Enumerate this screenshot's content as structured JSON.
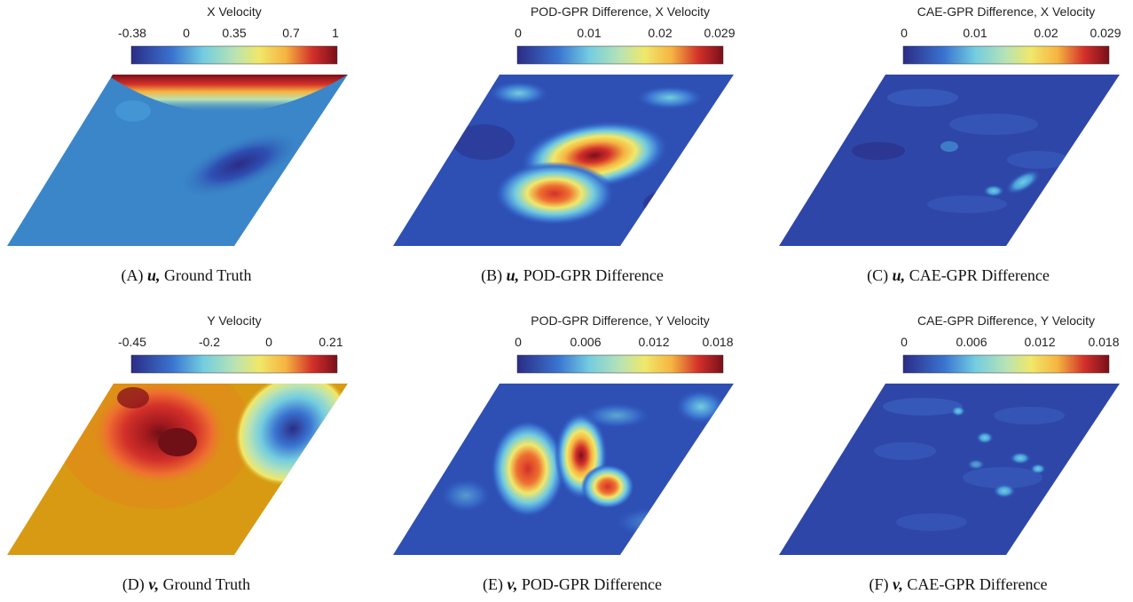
{
  "panels": [
    {
      "id": "A",
      "colorbar": {
        "title": "X Velocity",
        "ticks": [
          "-0.38",
          "0",
          "0.35",
          "0.7",
          "1"
        ]
      },
      "caption": {
        "label": "(A)",
        "symbol": "u,",
        "text": "Ground Truth"
      }
    },
    {
      "id": "B",
      "colorbar": {
        "title": "POD-GPR Difference, X Velocity",
        "ticks": [
          "0",
          "0.01",
          "0.02",
          "0.029"
        ]
      },
      "caption": {
        "label": "(B)",
        "symbol": "u,",
        "text": "POD-GPR Difference"
      }
    },
    {
      "id": "C",
      "colorbar": {
        "title": "CAE-GPR Difference, X Velocity",
        "ticks": [
          "0",
          "0.01",
          "0.02",
          "0.029"
        ]
      },
      "caption": {
        "label": "(C)",
        "symbol": "u,",
        "text": "CAE-GPR Difference"
      }
    },
    {
      "id": "D",
      "colorbar": {
        "title": "Y Velocity",
        "ticks": [
          "-0.45",
          "-0.2",
          "0",
          "0.21"
        ]
      },
      "caption": {
        "label": "(D)",
        "symbol": "v,",
        "text": "Ground Truth"
      }
    },
    {
      "id": "E",
      "colorbar": {
        "title": "POD-GPR Difference, Y Velocity",
        "ticks": [
          "0",
          "0.006",
          "0.012",
          "0.018"
        ]
      },
      "caption": {
        "label": "(E)",
        "symbol": "v,",
        "text": "POD-GPR Difference"
      }
    },
    {
      "id": "F",
      "colorbar": {
        "title": "CAE-GPR Difference, Y Velocity",
        "ticks": [
          "0",
          "0.006",
          "0.012",
          "0.018"
        ]
      },
      "caption": {
        "label": "(F)",
        "symbol": "v,",
        "text": "CAE-GPR Difference"
      }
    }
  ],
  "colormap": [
    "#2b2c86",
    "#2e4fb3",
    "#3a74d1",
    "#4aa0dc",
    "#73cde0",
    "#b8e3b5",
    "#f0e86a",
    "#f6b441",
    "#ef7030",
    "#d3302a",
    "#7a0f1a"
  ]
}
